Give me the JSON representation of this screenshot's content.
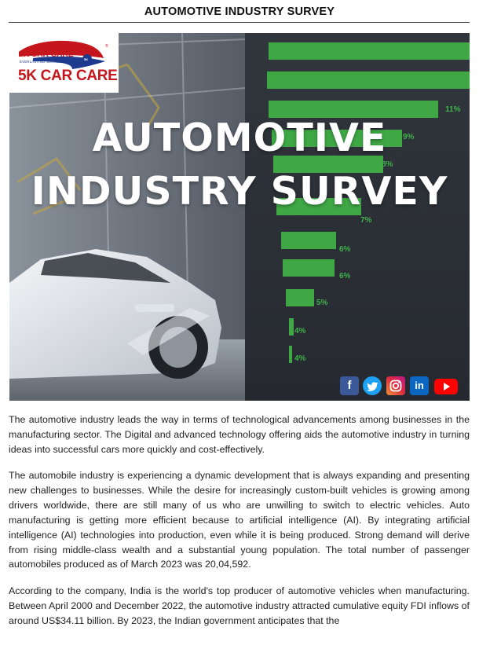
{
  "document": {
    "title": "AUTOMOTIVE INDUSTRY SURVEY"
  },
  "banner": {
    "logo": {
      "brand_small": "5K CAR CARE",
      "tagline": "EVERLASTING SUCCESS",
      "brand_big": "5K CAR CARE",
      "badge": "5K",
      "registered": "®"
    },
    "heading_line1": "AUTOMOTIVE",
    "heading_line2": "INDUSTRY SURVEY",
    "bar_labels": [
      "11%",
      "9%",
      "8%",
      "7%",
      "6%",
      "6%",
      "5%",
      "4%",
      "4%"
    ],
    "social_icons": [
      "facebook-icon",
      "twitter-icon",
      "instagram-icon",
      "linkedin-icon",
      "youtube-icon"
    ],
    "colors": {
      "bars": "#3fa845",
      "brand_red": "#c4161c",
      "brand_blue": "#1d3a8f"
    }
  },
  "body": {
    "paragraph1": "The automotive industry leads the way in terms of technological advancements among businesses in the manufacturing sector. The Digital and advanced technology offering aids the automotive industry in turning ideas into successful cars more quickly and cost-effectively.",
    "paragraph2": "The automobile industry is experiencing a dynamic development that is always expanding and presenting new challenges to businesses. While the desire for increasingly custom-built vehicles is growing among drivers worldwide, there are still many of us who are unwilling to switch to electric vehicles. Auto manufacturing is getting more efficient because to artificial intelligence (AI). By integrating artificial intelligence (AI) technologies into production, even while it is being produced. Strong demand will derive from rising middle-class wealth and a substantial young population. The total number of passenger automobiles produced as of March 2023 was 20,04,592.",
    "paragraph3": "According to the company, India is the world's top producer of automotive vehicles when manufacturing. Between April 2000 and December 2022, the automotive industry attracted cumulative equity FDI inflows of around US$34.11 billion. By 2023, the Indian government anticipates that the"
  }
}
